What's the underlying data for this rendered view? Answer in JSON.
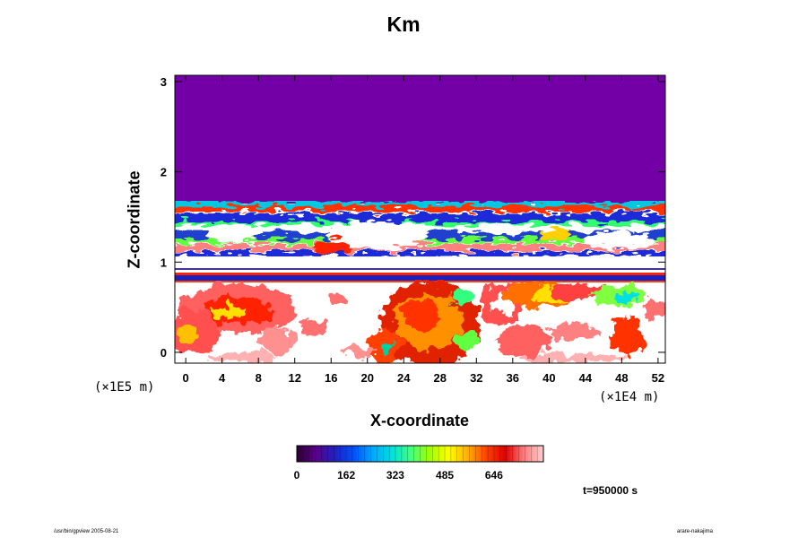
{
  "chart_data": {
    "type": "heatmap",
    "title": "Km",
    "xlabel": "X-coordinate",
    "ylabel": "Z-coordinate",
    "x_unit": "(×1E4 m)",
    "y_unit": "(×1E5 m)",
    "x_ticks": [
      0,
      4,
      8,
      12,
      16,
      20,
      24,
      28,
      32,
      36,
      40,
      44,
      48,
      52
    ],
    "y_ticks": [
      0,
      1,
      2,
      3
    ],
    "xlim": [
      -1.2,
      52.8
    ],
    "ylim": [
      -0.12,
      3.07
    ],
    "colorbar": {
      "ticks": [
        0,
        162,
        323,
        485,
        646
      ],
      "range": [
        0,
        808
      ],
      "colormap": [
        "#2a0030",
        "#5a008a",
        "#2020c0",
        "#0050ff",
        "#00a8ff",
        "#00e0e0",
        "#40ff80",
        "#a0ff00",
        "#ffff00",
        "#ffb000",
        "#ff4000",
        "#e00000",
        "#ff8080",
        "#ffd0d0"
      ]
    },
    "background_color": "#7300a6",
    "time_label": "t=950000 s"
  },
  "footer": {
    "left": "/usr/bin/gpview 2005-08-21",
    "right": "arare-nakajima"
  }
}
